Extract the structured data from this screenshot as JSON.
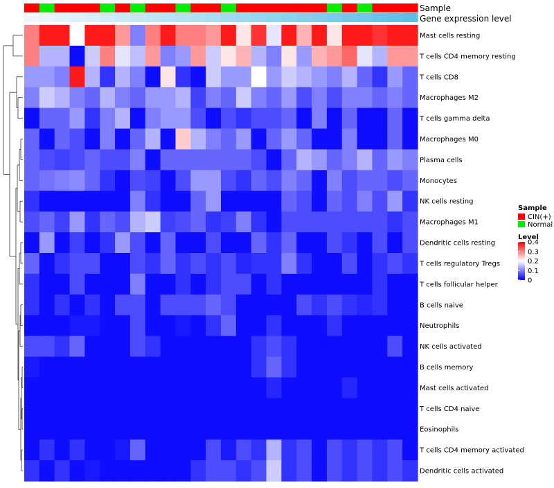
{
  "chart_data": {
    "type": "heatmap",
    "title": "",
    "annotation_track_labels": [
      "Sample",
      "Gene expression level"
    ],
    "samples": [
      "CIN(+)",
      "Normal",
      "CIN(+)",
      "CIN(+)",
      "CIN(+)",
      "Normal",
      "CIN(+)",
      "Normal",
      "CIN(+)",
      "CIN(+)",
      "Normal",
      "CIN(+)",
      "CIN(+)",
      "Normal",
      "CIN(+)",
      "CIN(+)",
      "CIN(+)",
      "CIN(+)",
      "CIN(+)",
      "CIN(+)",
      "Normal",
      "CIN(+)",
      "Normal",
      "CIN(+)",
      "CIN(+)",
      "CIN(+)"
    ],
    "gene_expression_level": [
      0.0,
      0.04,
      0.08,
      0.12,
      0.16,
      0.2,
      0.24,
      0.28,
      0.32,
      0.36,
      0.4,
      0.44,
      0.48,
      0.52,
      0.56,
      0.6,
      0.64,
      0.68,
      0.72,
      0.76,
      0.8,
      0.84,
      0.88,
      0.92,
      0.96,
      1.0
    ],
    "rows": [
      "Mast cells resting",
      "T cells CD4 memory resting",
      "T cells CD8",
      "Macrophages M2",
      "T cells gamma delta",
      "Macrophages M0",
      "Plasma cells",
      "Monocytes",
      "NK cells resting",
      "Macrophages M1",
      "Dendritic cells resting",
      "T cells regulatory  Tregs",
      "T cells follicular helper",
      "B cells naive",
      "Neutrophils",
      "NK cells activated",
      "B cells memory",
      "Mast cells activated",
      "T cells CD4 naive",
      "Eosinophils",
      "T cells CD4 memory activated",
      "Dendritic cells activated"
    ],
    "values": [
      [
        0.3,
        0.38,
        0.38,
        0.2,
        0.38,
        0.38,
        0.28,
        0.1,
        0.3,
        0.38,
        0.3,
        0.3,
        0.28,
        0.38,
        0.22,
        0.36,
        0.18,
        0.38,
        0.26,
        0.38,
        0.22,
        0.38,
        0.38,
        0.36,
        0.38,
        0.38
      ],
      [
        0.3,
        0.14,
        0.14,
        0.01,
        0.16,
        0.3,
        0.18,
        0.15,
        0.28,
        0.1,
        0.12,
        0.28,
        0.16,
        0.22,
        0.26,
        0.14,
        0.1,
        0.22,
        0.12,
        0.26,
        0.28,
        0.32,
        0.18,
        0.14,
        0.28,
        0.28
      ],
      [
        0.12,
        0.12,
        0.1,
        0.38,
        0.14,
        0.04,
        0.14,
        0.1,
        0.01,
        0.22,
        0.04,
        0.01,
        0.16,
        0.12,
        0.12,
        0.2,
        0.12,
        0.16,
        0.14,
        0.12,
        0.1,
        0.14,
        0.08,
        0.04,
        0.12,
        0.08
      ],
      [
        0.1,
        0.16,
        0.14,
        0.1,
        0.08,
        0.14,
        0.1,
        0.08,
        0.12,
        0.12,
        0.14,
        0.05,
        0.1,
        0.08,
        0.16,
        0.1,
        0.08,
        0.12,
        0.06,
        0.1,
        0.06,
        0.1,
        0.1,
        0.08,
        0.1,
        0.08
      ],
      [
        0.01,
        0.08,
        0.08,
        0.12,
        0.04,
        0.1,
        0.14,
        0.01,
        0.1,
        0.12,
        0.12,
        0.06,
        0.01,
        0.06,
        0.04,
        0.06,
        0.06,
        0.08,
        0.01,
        0.1,
        0.01,
        0.08,
        0.01,
        0.01,
        0.08,
        0.01
      ],
      [
        0.08,
        0.01,
        0.08,
        0.06,
        0.01,
        0.1,
        0.01,
        0.08,
        0.14,
        0.01,
        0.24,
        0.14,
        0.1,
        0.08,
        0.12,
        0.01,
        0.08,
        0.12,
        0.08,
        0.01,
        0.01,
        0.1,
        0.01,
        0.01,
        0.08,
        0.01
      ],
      [
        0.08,
        0.06,
        0.05,
        0.06,
        0.08,
        0.06,
        0.06,
        0.1,
        0.01,
        0.08,
        0.08,
        0.08,
        0.08,
        0.08,
        0.08,
        0.06,
        0.01,
        0.08,
        0.14,
        0.12,
        0.08,
        0.1,
        0.14,
        0.08,
        0.12,
        0.1
      ],
      [
        0.08,
        0.09,
        0.1,
        0.11,
        0.08,
        0.04,
        0.01,
        0.06,
        0.05,
        0.01,
        0.06,
        0.12,
        0.12,
        0.06,
        0.04,
        0.08,
        0.06,
        0.1,
        0.08,
        0.01,
        0.1,
        0.06,
        0.08,
        0.08,
        0.06,
        0.08
      ],
      [
        0.04,
        0.01,
        0.01,
        0.01,
        0.01,
        0.01,
        0.01,
        0.1,
        0.04,
        0.01,
        0.01,
        0.08,
        0.12,
        0.01,
        0.01,
        0.01,
        0.01,
        0.08,
        0.06,
        0.01,
        0.08,
        0.06,
        0.1,
        0.06,
        0.12,
        0.04
      ],
      [
        0.06,
        0.08,
        0.05,
        0.12,
        0.04,
        0.08,
        0.06,
        0.14,
        0.16,
        0.05,
        0.06,
        0.08,
        0.04,
        0.05,
        0.1,
        0.04,
        0.01,
        0.06,
        0.06,
        0.06,
        0.06,
        0.06,
        0.06,
        0.06,
        0.04,
        0.06
      ],
      [
        0.01,
        0.12,
        0.01,
        0.05,
        0.01,
        0.04,
        0.12,
        0.06,
        0.01,
        0.08,
        0.01,
        0.01,
        0.06,
        0.01,
        0.01,
        0.08,
        0.04,
        0.08,
        0.01,
        0.01,
        0.06,
        0.04,
        0.01,
        0.06,
        0.01,
        0.06
      ],
      [
        0.08,
        0.01,
        0.04,
        0.06,
        0.06,
        0.01,
        0.01,
        0.06,
        0.04,
        0.08,
        0.04,
        0.06,
        0.04,
        0.06,
        0.03,
        0.04,
        0.04,
        0.1,
        0.04,
        0.01,
        0.01,
        0.06,
        0.01,
        0.04,
        0.06,
        0.04
      ],
      [
        0.04,
        0.01,
        0.01,
        0.06,
        0.01,
        0.01,
        0.01,
        0.1,
        0.01,
        0.01,
        0.04,
        0.01,
        0.04,
        0.06,
        0.06,
        0.01,
        0.04,
        0.01,
        0.01,
        0.01,
        0.01,
        0.01,
        0.01,
        0.04,
        0.01,
        0.01
      ],
      [
        0.04,
        0.01,
        0.04,
        0.01,
        0.04,
        0.01,
        0.06,
        0.06,
        0.01,
        0.06,
        0.06,
        0.06,
        0.08,
        0.06,
        0.01,
        0.01,
        0.01,
        0.01,
        0.06,
        0.04,
        0.06,
        0.04,
        0.03,
        0.04,
        0.01,
        0.01
      ],
      [
        0.01,
        0.01,
        0.01,
        0.02,
        0.02,
        0.01,
        0.01,
        0.06,
        0.01,
        0.01,
        0.02,
        0.01,
        0.04,
        0.08,
        0.01,
        0.01,
        0.04,
        0.01,
        0.01,
        0.01,
        0.04,
        0.01,
        0.01,
        0.01,
        0.01,
        0.01
      ],
      [
        0.06,
        0.06,
        0.04,
        0.08,
        0.01,
        0.01,
        0.01,
        0.06,
        0.04,
        0.01,
        0.01,
        0.01,
        0.01,
        0.01,
        0.01,
        0.04,
        0.06,
        0.04,
        0.01,
        0.01,
        0.01,
        0.01,
        0.01,
        0.01,
        0.06,
        0.01
      ],
      [
        0.02,
        0.01,
        0.01,
        0.01,
        0.01,
        0.01,
        0.01,
        0.01,
        0.01,
        0.01,
        0.01,
        0.01,
        0.01,
        0.01,
        0.01,
        0.04,
        0.08,
        0.04,
        0.01,
        0.01,
        0.01,
        0.01,
        0.01,
        0.01,
        0.01,
        0.01
      ],
      [
        0.01,
        0.01,
        0.01,
        0.01,
        0.01,
        0.01,
        0.01,
        0.01,
        0.01,
        0.01,
        0.01,
        0.01,
        0.01,
        0.01,
        0.01,
        0.01,
        0.03,
        0.01,
        0.01,
        0.01,
        0.01,
        0.03,
        0.01,
        0.01,
        0.01,
        0.01
      ],
      [
        0.01,
        0.01,
        0.01,
        0.01,
        0.01,
        0.01,
        0.01,
        0.01,
        0.01,
        0.01,
        0.01,
        0.01,
        0.01,
        0.01,
        0.01,
        0.01,
        0.01,
        0.01,
        0.01,
        0.01,
        0.01,
        0.01,
        0.01,
        0.01,
        0.01,
        0.01
      ],
      [
        0.01,
        0.01,
        0.01,
        0.01,
        0.01,
        0.01,
        0.01,
        0.01,
        0.01,
        0.01,
        0.01,
        0.01,
        0.01,
        0.01,
        0.01,
        0.01,
        0.01,
        0.01,
        0.01,
        0.01,
        0.01,
        0.01,
        0.01,
        0.01,
        0.01,
        0.01
      ],
      [
        0.01,
        0.04,
        0.01,
        0.04,
        0.01,
        0.01,
        0.02,
        0.08,
        0.01,
        0.01,
        0.01,
        0.01,
        0.06,
        0.02,
        0.06,
        0.04,
        0.14,
        0.04,
        0.06,
        0.01,
        0.06,
        0.04,
        0.06,
        0.04,
        0.06,
        0.01
      ],
      [
        0.04,
        0.01,
        0.04,
        0.01,
        0.02,
        0.01,
        0.01,
        0.01,
        0.01,
        0.01,
        0.01,
        0.04,
        0.06,
        0.06,
        0.04,
        0.06,
        0.16,
        0.04,
        0.06,
        0.01,
        0.06,
        0.04,
        0.06,
        0.04,
        0.06,
        0.04
      ]
    ],
    "legend": {
      "sample_title": "Sample",
      "sample_entries": [
        {
          "label": "CIN(+)",
          "color": "#ff0000"
        },
        {
          "label": "Normal",
          "color": "#00ee00"
        }
      ],
      "level_title": "Level",
      "level_ticks": [
        "0.4",
        "0.3",
        "0.2",
        "0.1",
        "0"
      ],
      "level_tick_values": [
        0.4,
        0.3,
        0.2,
        0.1,
        0
      ],
      "level_range": [
        0,
        0.4
      ],
      "placement": "right"
    },
    "colors": {
      "low": "#0000ff",
      "mid": "#ffffff",
      "high": "#ff0000",
      "cin": "#ff0000",
      "normal": "#00ee00",
      "expr_low": "#f0f7fb",
      "expr_high": "#5bc0e8"
    },
    "column_dendrogram": "none",
    "row_dendrogram": "left"
  }
}
